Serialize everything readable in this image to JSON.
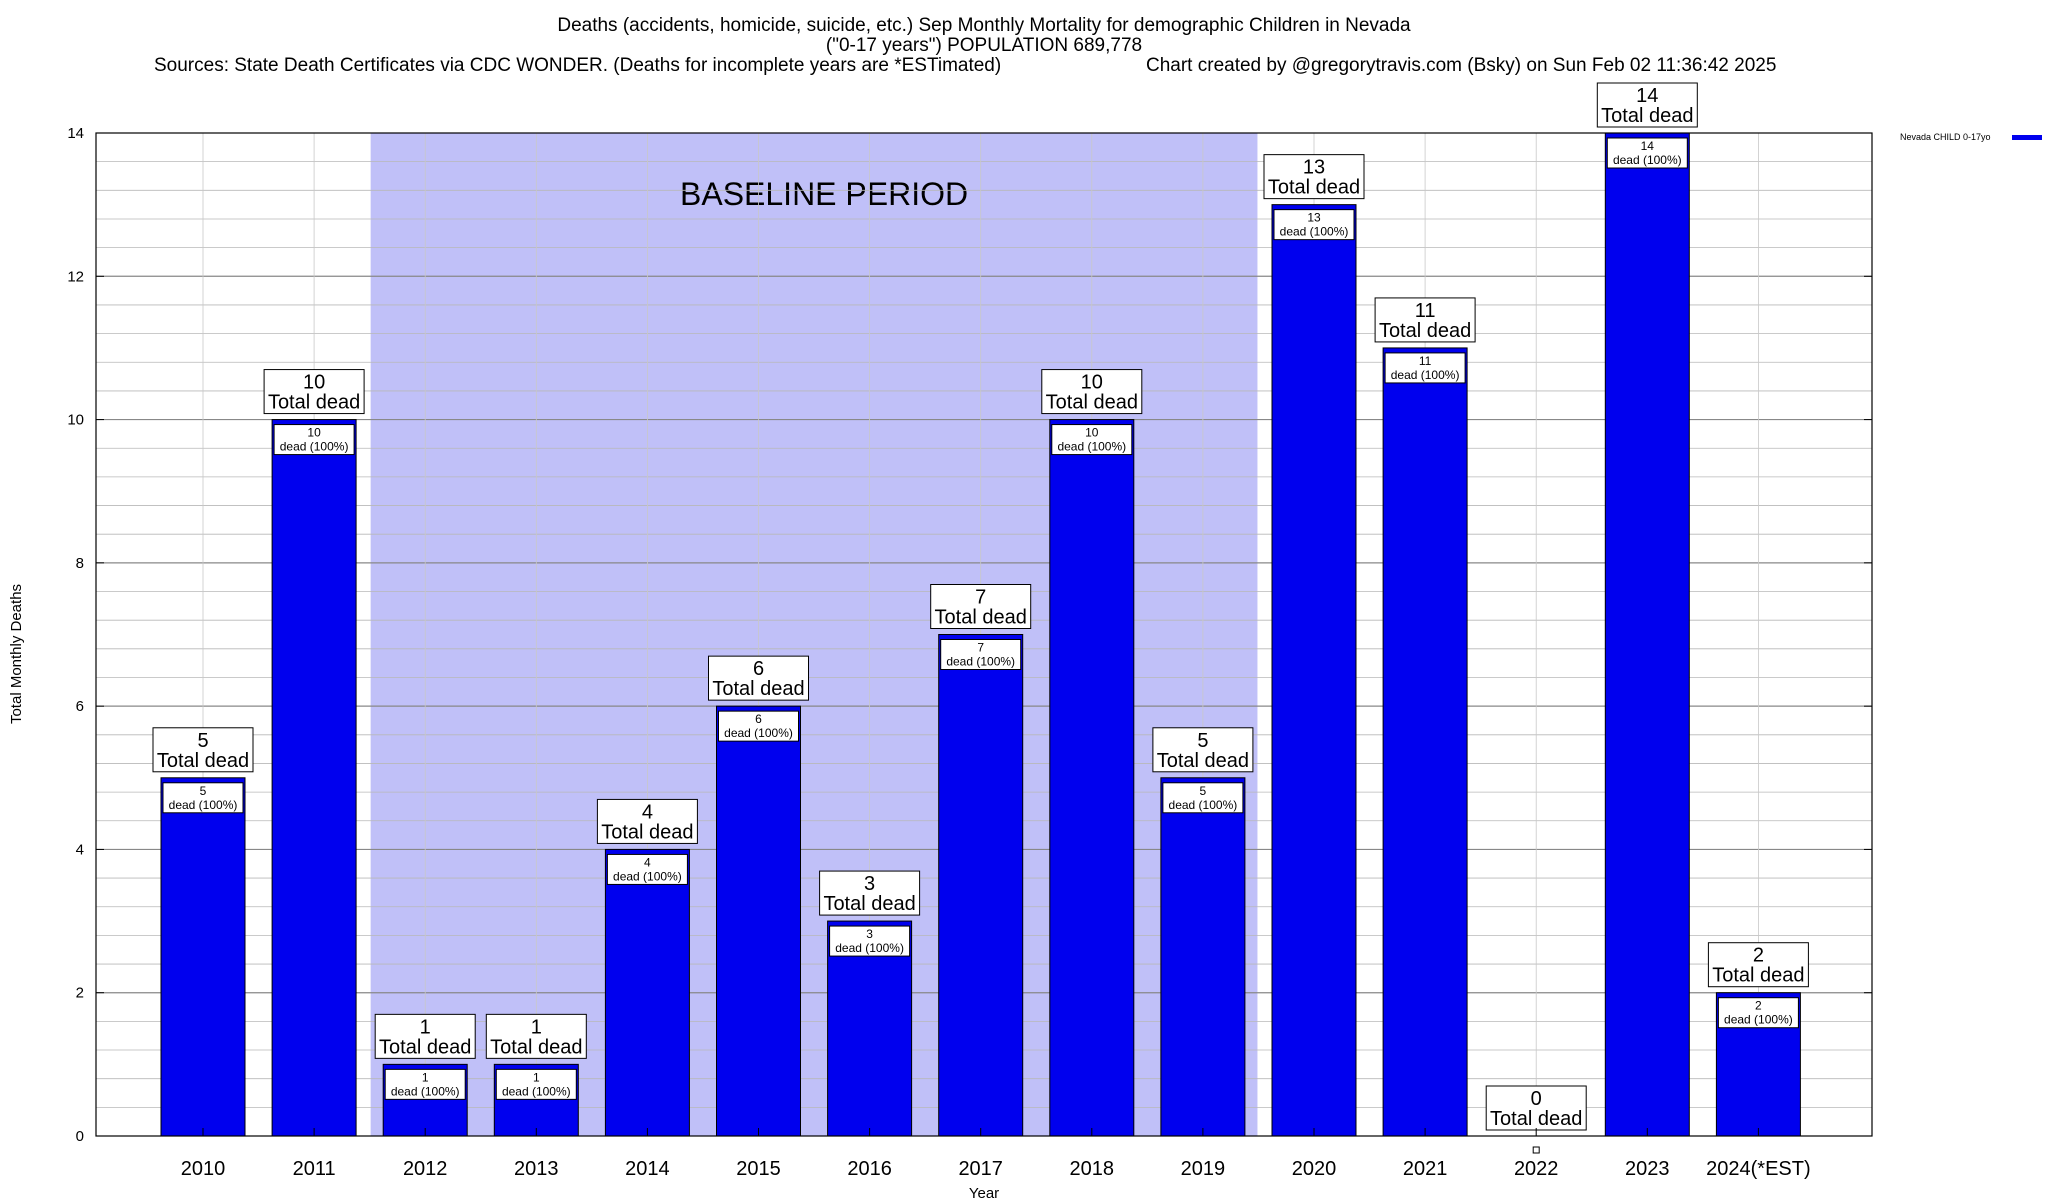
{
  "chart_data": {
    "type": "bar",
    "title": "Deaths (accidents, homicide, suicide, etc.) Sep Monthly Mortality for demographic Children in Nevada",
    "subtitle": "(\"0-17 years\") POPULATION 689,778",
    "source": "Sources: State Death Certificates via CDC WONDER. (Deaths for incomplete years are *ESTimated)",
    "credit": "Chart created by @gregorytravis.com (Bsky) on Sun Feb 02 11:36:42 2025",
    "xlabel": "Year",
    "ylabel": "Total Monthly Deaths",
    "ylim": [
      0,
      14
    ],
    "yticks": [
      0,
      2,
      4,
      6,
      8,
      10,
      12,
      14
    ],
    "grid": true,
    "legend_position": "top-right",
    "categories": [
      "2010",
      "2011",
      "2012",
      "2013",
      "2014",
      "2015",
      "2016",
      "2017",
      "2018",
      "2019",
      "2020",
      "2021",
      "2022",
      "2023",
      "2024(*EST)"
    ],
    "series": [
      {
        "name": "Nevada CHILD 0-17yo",
        "color": "#0000ee",
        "values": [
          5,
          10,
          1,
          1,
          4,
          6,
          3,
          7,
          10,
          5,
          13,
          11,
          0,
          14,
          2
        ]
      }
    ],
    "total_labels": [
      "5",
      "10",
      "1",
      "1",
      "4",
      "6",
      "3",
      "7",
      "10",
      "5",
      "13",
      "11",
      "0",
      "14",
      "2"
    ],
    "total_suffix": "Total dead",
    "inner_labels": [
      "5",
      "10",
      "1",
      "1",
      "4",
      "6",
      "3",
      "7",
      "10",
      "5",
      "13",
      "11",
      "",
      "14",
      "2"
    ],
    "inner_suffix": "dead (100%)",
    "annotation": {
      "text": "BASELINE PERIOD",
      "start_category": "2012",
      "end_category": "2019",
      "color": "#c0c0f8"
    }
  }
}
